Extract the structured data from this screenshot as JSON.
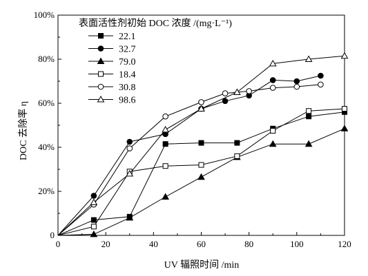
{
  "chart_data": {
    "type": "line",
    "xlabel": "UV 辐照时间 /min",
    "ylabel": "DOC 去除率 η",
    "xlim": [
      0,
      120
    ],
    "ylim": [
      0,
      100
    ],
    "x_ticks": [
      "0",
      "20",
      "40",
      "60",
      "80",
      "100",
      "120"
    ],
    "y_ticks": [
      "0",
      "20%",
      "40%",
      "60%",
      "80%",
      "100%"
    ],
    "grid": false,
    "legend_title": "表面活性剂初始 DOC 浓度 /(mg·L⁻¹)",
    "legend_position": "top-left",
    "series": [
      {
        "name": "22.1",
        "marker": "square-filled",
        "x": [
          0,
          15,
          30,
          45,
          60,
          75,
          90,
          105,
          120
        ],
        "y": [
          0,
          7,
          8.5,
          41.5,
          42,
          42,
          48.5,
          54,
          56
        ]
      },
      {
        "name": "32.7",
        "marker": "circle-filled",
        "x": [
          0,
          15,
          30,
          45,
          60,
          70,
          80,
          90,
          100,
          110
        ],
        "y": [
          0,
          18,
          42.5,
          46,
          57.5,
          61,
          63.5,
          70.5,
          70,
          72.5
        ]
      },
      {
        "name": "79.0",
        "marker": "triangle-filled",
        "x": [
          0,
          15,
          30,
          45,
          60,
          75,
          90,
          105,
          120
        ],
        "y": [
          0,
          0.5,
          8,
          17.5,
          26.5,
          35.5,
          41.5,
          41.5,
          48.5
        ]
      },
      {
        "name": "18.4",
        "marker": "square-open",
        "x": [
          0,
          15,
          30,
          45,
          60,
          75,
          90,
          105,
          120
        ],
        "y": [
          0,
          4,
          29,
          31.5,
          32,
          36,
          47.5,
          56.5,
          57.5
        ]
      },
      {
        "name": "30.8",
        "marker": "circle-open",
        "x": [
          0,
          15,
          30,
          45,
          60,
          70,
          80,
          90,
          100,
          110
        ],
        "y": [
          0,
          14,
          39.5,
          54,
          60.5,
          64.5,
          65.5,
          67,
          67.5,
          68.5
        ]
      },
      {
        "name": "98.6",
        "marker": "triangle-open",
        "x": [
          0,
          15,
          30,
          45,
          60,
          75,
          90,
          105,
          120
        ],
        "y": [
          0,
          15,
          28,
          48,
          57.5,
          65,
          78,
          80,
          81.5
        ]
      }
    ]
  }
}
